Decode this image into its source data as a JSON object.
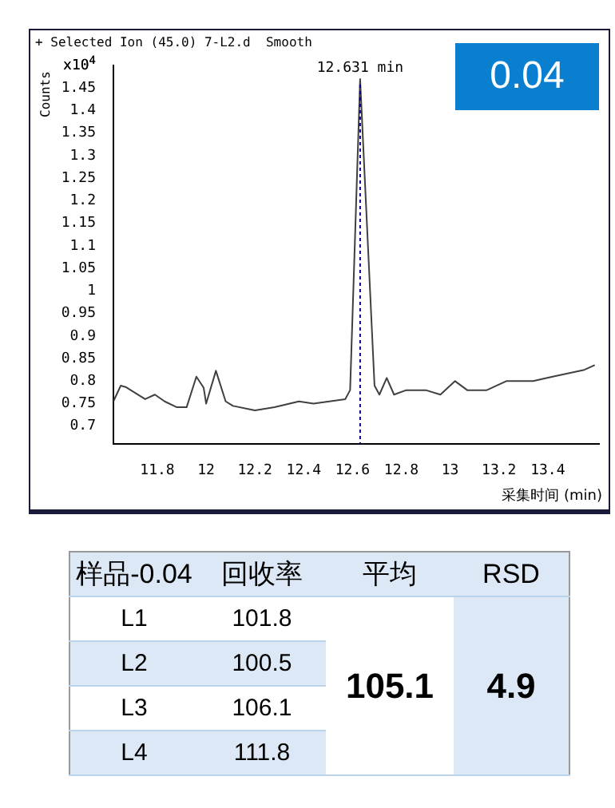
{
  "chart_data": [
    {
      "type": "line",
      "title": "+ Selected Ion (45.0) 7-L2.d  Smooth",
      "xlabel": "采集时间 (min)",
      "ylabel": "Counts",
      "color": "#404040",
      "x": [
        11.62,
        11.65,
        11.67,
        11.75,
        11.79,
        11.83,
        11.88,
        11.92,
        11.96,
        11.99,
        12.0,
        12.04,
        12.08,
        12.11,
        12.2,
        12.28,
        12.38,
        12.44,
        12.57,
        12.59,
        12.631,
        12.69,
        12.71,
        12.74,
        12.77,
        12.82,
        12.9,
        12.96,
        13.02,
        13.07,
        13.15,
        13.23,
        13.34,
        13.42,
        13.55,
        13.59
      ],
      "values": [
        0.755,
        0.79,
        0.787,
        0.76,
        0.77,
        0.755,
        0.742,
        0.742,
        0.81,
        0.785,
        0.75,
        0.823,
        0.755,
        0.745,
        0.735,
        0.742,
        0.755,
        0.75,
        0.76,
        0.78,
        1.47,
        0.79,
        0.77,
        0.807,
        0.77,
        0.78,
        0.78,
        0.77,
        0.8,
        0.78,
        0.78,
        0.8,
        0.8,
        0.81,
        0.825,
        0.835
      ],
      "xlim": [
        11.62,
        13.61
      ],
      "xticks": [
        11.8,
        12,
        12.2,
        12.4,
        12.6,
        12.8,
        13,
        13.2,
        13.4
      ],
      "ylim": [
        0.66,
        1.5
      ],
      "yticks": [
        0.7,
        0.75,
        0.8,
        0.85,
        0.9,
        0.95,
        1,
        1.05,
        1.1,
        1.15,
        1.2,
        1.25,
        1.3,
        1.35,
        1.4,
        1.45,
        {
          "value": 1.5,
          "label": "x10$^{4}$"
        }
      ],
      "grid": false,
      "legend": false,
      "marker": "none",
      "line_style": "solid",
      "ref_lines": [
        {
          "axis": "x",
          "value": 12.631,
          "label": "12.631 min",
          "line_style": "dotted",
          "color": "#000080"
        }
      ],
      "annotations": [
        "0.04"
      ]
    },
    {
      "type": "other",
      "xlabel": "样品-0.04",
      "ylabel": "回收率",
      "categories": [
        "L1",
        "L2",
        "L3",
        "L4"
      ],
      "values": [
        101.8,
        100.5,
        106.1,
        111.8
      ],
      "data_labels": true,
      "annotations": [
        "平均",
        "105.1",
        "RSD",
        "4.9"
      ]
    }
  ]
}
